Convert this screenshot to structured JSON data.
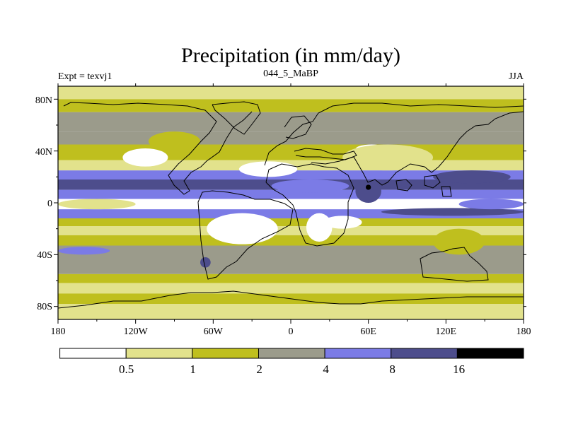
{
  "chart_data": {
    "type": "heatmap",
    "title": "Precipitation (in mm/day)",
    "left_label": "Expt = texvj1",
    "center_label": "044_5_MaBP",
    "right_label": "JJA",
    "x_ticks": [
      "180",
      "120W",
      "60W",
      "0",
      "60E",
      "120E",
      "180"
    ],
    "y_ticks": [
      "80N",
      "40N",
      "0",
      "40S",
      "80S"
    ],
    "x_range": [
      -180,
      180
    ],
    "y_range": [
      -90,
      90
    ],
    "colorbar": {
      "levels": [
        "0.5",
        "1",
        "2",
        "4",
        "8",
        "16"
      ],
      "colors": [
        "#ffffff",
        "#e2e28c",
        "#bfbf1e",
        "#9b9b8b",
        "#7b7be6",
        "#4d4d8c",
        "#000000"
      ]
    },
    "bands": [
      {
        "lat": [
          80,
          90
        ],
        "level": 1
      },
      {
        "lat": [
          70,
          80
        ],
        "level": 2
      },
      {
        "lat": [
          55,
          70
        ],
        "level": 3
      },
      {
        "lat": [
          45,
          55
        ],
        "level": 3
      },
      {
        "lat": [
          33,
          45
        ],
        "level": 2
      },
      {
        "lat": [
          25,
          33
        ],
        "level": 1
      },
      {
        "lat": [
          18,
          25
        ],
        "level": 4
      },
      {
        "lat": [
          10,
          18
        ],
        "level": 5
      },
      {
        "lat": [
          3,
          10
        ],
        "level": 4
      },
      {
        "lat": [
          -5,
          3
        ],
        "level": 0
      },
      {
        "lat": [
          -12,
          -5
        ],
        "level": 4
      },
      {
        "lat": [
          -18,
          -12
        ],
        "level": 2
      },
      {
        "lat": [
          -25,
          -18
        ],
        "level": 1
      },
      {
        "lat": [
          -33,
          -25
        ],
        "level": 2
      },
      {
        "lat": [
          -55,
          -33
        ],
        "level": 3
      },
      {
        "lat": [
          -62,
          -55
        ],
        "level": 2
      },
      {
        "lat": [
          -70,
          -62
        ],
        "level": 1
      },
      {
        "lat": [
          -78,
          -70
        ],
        "level": 2
      },
      {
        "lat": [
          -90,
          -78
        ],
        "level": 1
      }
    ],
    "patches": [
      {
        "lon": [
          -130,
          -95
        ],
        "lat": [
          28,
          42
        ],
        "level": 0
      },
      {
        "lon": [
          -40,
          5
        ],
        "lat": [
          20,
          32
        ],
        "level": 0
      },
      {
        "lon": [
          -65,
          -10
        ],
        "lat": [
          -32,
          -8
        ],
        "level": 0
      },
      {
        "lon": [
          12,
          32
        ],
        "lat": [
          -30,
          -8
        ],
        "level": 0
      },
      {
        "lon": [
          25,
          55
        ],
        "lat": [
          -20,
          -10
        ],
        "level": 0
      },
      {
        "lon": [
          50,
          75
        ],
        "lat": [
          38,
          45
        ],
        "level": 0
      },
      {
        "lon": [
          -15,
          45
        ],
        "lat": [
          8,
          18
        ],
        "level": 4
      },
      {
        "lon": [
          50,
          70
        ],
        "lat": [
          0,
          18
        ],
        "level": 5
      },
      {
        "lon": [
          58,
          62
        ],
        "lat": [
          10,
          14
        ],
        "level": 6
      },
      {
        "lon": [
          110,
          170
        ],
        "lat": [
          15,
          25
        ],
        "level": 5
      },
      {
        "lon": [
          70,
          180
        ],
        "lat": [
          -10,
          -4
        ],
        "level": 5
      },
      {
        "lon": [
          -180,
          -140
        ],
        "lat": [
          -40,
          -34
        ],
        "level": 4
      },
      {
        "lon": [
          -70,
          -62
        ],
        "lat": [
          -50,
          -42
        ],
        "level": 5
      },
      {
        "lon": [
          110,
          150
        ],
        "lat": [
          -40,
          -20
        ],
        "level": 2
      },
      {
        "lon": [
          -110,
          -70
        ],
        "lat": [
          40,
          55
        ],
        "level": 2
      },
      {
        "lon": [
          40,
          110
        ],
        "lat": [
          25,
          45
        ],
        "level": 1
      },
      {
        "lon": [
          -180,
          -120
        ],
        "lat": [
          -5,
          3
        ],
        "level": 1
      },
      {
        "lon": [
          130,
          180
        ],
        "lat": [
          -5,
          3
        ],
        "level": 4
      }
    ]
  }
}
